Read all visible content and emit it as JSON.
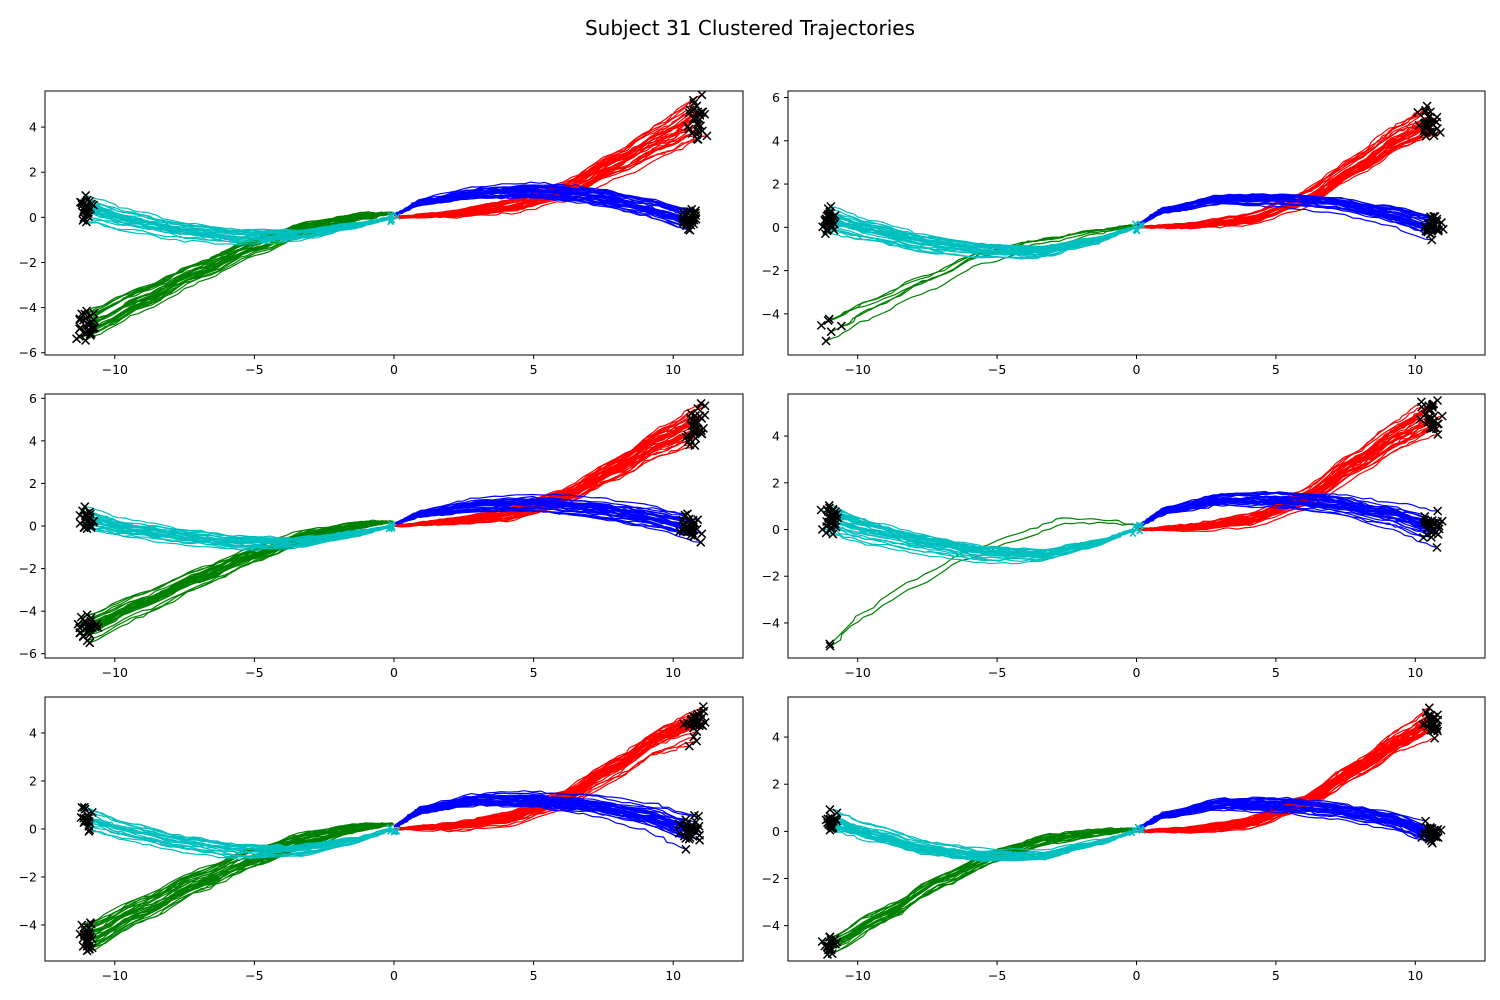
{
  "figure_title": "Subject 31 Clustered Trajectories",
  "colors": {
    "red": "#ff0000",
    "blue": "#0000ff",
    "green": "#008000",
    "cyan": "#00bfbf",
    "marker": "#000000"
  },
  "chart_data": [
    {
      "type": "line",
      "panel": "top-left",
      "xlim": [
        -12.5,
        12.5
      ],
      "ylim": [
        -6.1,
        5.6
      ],
      "xticks": [
        -10,
        -5,
        0,
        5,
        10
      ],
      "yticks": [
        -6,
        -4,
        -2,
        0,
        2,
        4
      ],
      "grid": false,
      "series": [
        {
          "color": "red",
          "x": [
            0,
            2,
            4,
            6,
            8,
            9.5,
            10.8
          ],
          "y": [
            0,
            0.15,
            0.5,
            1.2,
            2.5,
            3.6,
            4.5
          ],
          "lines": 30,
          "end_spread": [
            0.3,
            0.8
          ]
        },
        {
          "color": "blue",
          "x": [
            0,
            1,
            3,
            5,
            7,
            9,
            10.6
          ],
          "y": [
            0.1,
            0.7,
            1.1,
            1.2,
            1.0,
            0.5,
            -0.1
          ],
          "lines": 30,
          "end_spread": [
            0.3,
            0.4
          ]
        },
        {
          "color": "green",
          "x": [
            0,
            -1,
            -3,
            -5,
            -7,
            -9,
            -11
          ],
          "y": [
            0.2,
            0.1,
            -0.4,
            -1.2,
            -2.3,
            -3.5,
            -4.7
          ],
          "lines": 30,
          "end_spread": [
            0.3,
            0.6
          ]
        },
        {
          "color": "cyan",
          "x": [
            0,
            -1.5,
            -3.5,
            -5.5,
            -7.5,
            -9.5,
            -11
          ],
          "y": [
            0,
            -0.4,
            -0.8,
            -0.85,
            -0.6,
            -0.1,
            0.4
          ],
          "lines": 25,
          "end_spread": [
            0.2,
            0.4
          ]
        }
      ]
    },
    {
      "type": "line",
      "panel": "top-right",
      "xlim": [
        -12.5,
        12.5
      ],
      "ylim": [
        -5.9,
        6.3
      ],
      "xticks": [
        -10,
        -5,
        0,
        5,
        10
      ],
      "yticks": [
        -4,
        -2,
        0,
        2,
        4,
        6
      ],
      "grid": false,
      "series": [
        {
          "color": "red",
          "x": [
            0,
            2,
            4,
            6,
            8,
            9.5,
            10.5
          ],
          "y": [
            0,
            0.1,
            0.4,
            1.3,
            2.9,
            4.2,
            4.8
          ],
          "lines": 30,
          "end_spread": [
            0.3,
            0.6
          ]
        },
        {
          "color": "blue",
          "x": [
            0,
            1,
            3,
            5,
            7,
            9,
            10.6
          ],
          "y": [
            0.1,
            0.8,
            1.3,
            1.3,
            1.1,
            0.6,
            0.0
          ],
          "lines": 30,
          "end_spread": [
            0.3,
            0.5
          ]
        },
        {
          "color": "green",
          "x": [
            0,
            -1.5,
            -3.5,
            -5.5,
            -7.5,
            -9.5,
            -11
          ],
          "y": [
            0.1,
            -0.2,
            -0.7,
            -1.3,
            -2.5,
            -3.7,
            -4.7
          ],
          "lines": 6,
          "end_spread": [
            0.3,
            0.5
          ]
        },
        {
          "color": "cyan",
          "x": [
            0,
            -1.5,
            -3.5,
            -5.5,
            -7.5,
            -9.5,
            -11
          ],
          "y": [
            0,
            -0.6,
            -1.1,
            -1.0,
            -0.7,
            -0.1,
            0.4
          ],
          "lines": 30,
          "end_spread": [
            0.2,
            0.5
          ]
        }
      ]
    },
    {
      "type": "line",
      "panel": "middle-left",
      "xlim": [
        -12.5,
        12.5
      ],
      "ylim": [
        -6.2,
        6.2
      ],
      "xticks": [
        -10,
        -5,
        0,
        5,
        10
      ],
      "yticks": [
        -6,
        -4,
        -2,
        0,
        2,
        4,
        6
      ],
      "grid": false,
      "series": [
        {
          "color": "red",
          "x": [
            0,
            2,
            4,
            6,
            8,
            9.5,
            10.8
          ],
          "y": [
            0,
            0.2,
            0.5,
            1.3,
            2.7,
            3.9,
            4.6
          ],
          "lines": 35,
          "end_spread": [
            0.3,
            0.8
          ]
        },
        {
          "color": "blue",
          "x": [
            0,
            1,
            3,
            5,
            7,
            9,
            10.6
          ],
          "y": [
            0.1,
            0.6,
            1.0,
            1.1,
            0.9,
            0.5,
            0.0
          ],
          "lines": 30,
          "end_spread": [
            0.3,
            0.5
          ]
        },
        {
          "color": "green",
          "x": [
            0,
            -1,
            -3,
            -5,
            -7,
            -9,
            -11
          ],
          "y": [
            0.2,
            0.1,
            -0.4,
            -1.3,
            -2.4,
            -3.6,
            -4.8
          ],
          "lines": 30,
          "end_spread": [
            0.3,
            0.6
          ]
        },
        {
          "color": "cyan",
          "x": [
            0,
            -1.5,
            -3.5,
            -5.5,
            -7.5,
            -9.5,
            -11
          ],
          "y": [
            0,
            -0.4,
            -0.8,
            -0.8,
            -0.5,
            -0.1,
            0.4
          ],
          "lines": 25,
          "end_spread": [
            0.2,
            0.5
          ]
        }
      ]
    },
    {
      "type": "line",
      "panel": "middle-right",
      "xlim": [
        -12.5,
        12.5
      ],
      "ylim": [
        -5.5,
        5.8
      ],
      "xticks": [
        -10,
        -5,
        0,
        5,
        10
      ],
      "yticks": [
        -4,
        -2,
        0,
        2,
        4
      ],
      "grid": false,
      "series": [
        {
          "color": "red",
          "x": [
            0,
            2,
            4,
            6,
            8,
            9.5,
            10.6
          ],
          "y": [
            0,
            0.1,
            0.4,
            1.3,
            2.9,
            4.1,
            4.8
          ],
          "lines": 30,
          "end_spread": [
            0.3,
            0.5
          ]
        },
        {
          "color": "blue",
          "x": [
            0,
            1,
            3,
            5,
            7,
            9,
            10.6
          ],
          "y": [
            0.1,
            0.8,
            1.3,
            1.3,
            1.1,
            0.6,
            0.0
          ],
          "lines": 30,
          "end_spread": [
            0.3,
            0.5
          ]
        },
        {
          "color": "green",
          "x": [
            0,
            -1,
            -2.5,
            -4,
            -6,
            -8,
            -10,
            -11
          ],
          "y": [
            0.2,
            0.3,
            0.3,
            -0.3,
            -1.2,
            -2.4,
            -3.9,
            -5.0
          ],
          "lines": 2,
          "end_spread": [
            0.1,
            0.1
          ]
        },
        {
          "color": "cyan",
          "x": [
            0,
            -1.5,
            -3.5,
            -5.5,
            -7.5,
            -9.5,
            -11
          ],
          "y": [
            0,
            -0.6,
            -1.1,
            -1.0,
            -0.6,
            -0.1,
            0.4
          ],
          "lines": 30,
          "end_spread": [
            0.2,
            0.5
          ]
        }
      ]
    },
    {
      "type": "line",
      "panel": "bottom-left",
      "xlim": [
        -12.5,
        12.5
      ],
      "ylim": [
        -5.5,
        5.5
      ],
      "xticks": [
        -10,
        -5,
        0,
        5,
        10
      ],
      "yticks": [
        -4,
        -2,
        0,
        2,
        4
      ],
      "grid": false,
      "series": [
        {
          "color": "red",
          "x": [
            0,
            2,
            4,
            6,
            8,
            9.5,
            10.8
          ],
          "y": [
            0,
            0.1,
            0.4,
            1.2,
            2.6,
            3.8,
            4.4
          ],
          "lines": 35,
          "end_spread": [
            0.3,
            0.6
          ]
        },
        {
          "color": "blue",
          "x": [
            0,
            1,
            3,
            5,
            7,
            9,
            10.6
          ],
          "y": [
            0.1,
            0.8,
            1.2,
            1.2,
            1.0,
            0.6,
            0.0
          ],
          "lines": 35,
          "end_spread": [
            0.3,
            0.5
          ]
        },
        {
          "color": "green",
          "x": [
            0,
            -1,
            -3,
            -5,
            -7,
            -9,
            -11
          ],
          "y": [
            0.2,
            0.1,
            -0.4,
            -1.2,
            -2.2,
            -3.4,
            -4.6
          ],
          "lines": 30,
          "end_spread": [
            0.2,
            0.5
          ]
        },
        {
          "color": "cyan",
          "x": [
            0,
            -1.5,
            -3.5,
            -5.5,
            -7.5,
            -9.5,
            -11
          ],
          "y": [
            0,
            -0.5,
            -0.9,
            -0.9,
            -0.6,
            -0.1,
            0.4
          ],
          "lines": 20,
          "end_spread": [
            0.2,
            0.4
          ]
        }
      ]
    },
    {
      "type": "line",
      "panel": "bottom-right",
      "xlim": [
        -12.5,
        12.5
      ],
      "ylim": [
        -5.5,
        5.7
      ],
      "xticks": [
        -10,
        -5,
        0,
        5,
        10
      ],
      "yticks": [
        -4,
        -2,
        0,
        2,
        4
      ],
      "grid": false,
      "series": [
        {
          "color": "red",
          "x": [
            0,
            2,
            4,
            6,
            8,
            9.5,
            10.6
          ],
          "y": [
            0,
            0.1,
            0.4,
            1.3,
            2.8,
            4.0,
            4.7
          ],
          "lines": 35,
          "end_spread": [
            0.3,
            0.5
          ]
        },
        {
          "color": "blue",
          "x": [
            0,
            1,
            3,
            5,
            7,
            9,
            10.6
          ],
          "y": [
            0.1,
            0.7,
            1.2,
            1.2,
            1.0,
            0.6,
            0.0
          ],
          "lines": 30,
          "end_spread": [
            0.3,
            0.4
          ]
        },
        {
          "color": "green",
          "x": [
            0,
            -1,
            -3,
            -5,
            -7,
            -9,
            -11
          ],
          "y": [
            0.1,
            0.0,
            -0.3,
            -1.0,
            -2.1,
            -3.5,
            -4.8
          ],
          "lines": 20,
          "end_spread": [
            0.2,
            0.4
          ]
        },
        {
          "color": "cyan",
          "x": [
            0,
            -1.5,
            -3.5,
            -5.5,
            -7.5,
            -9.5,
            -11
          ],
          "y": [
            0,
            -0.5,
            -1.0,
            -1.0,
            -0.7,
            -0.1,
            0.4
          ],
          "lines": 25,
          "end_spread": [
            0.2,
            0.4
          ]
        }
      ]
    }
  ]
}
